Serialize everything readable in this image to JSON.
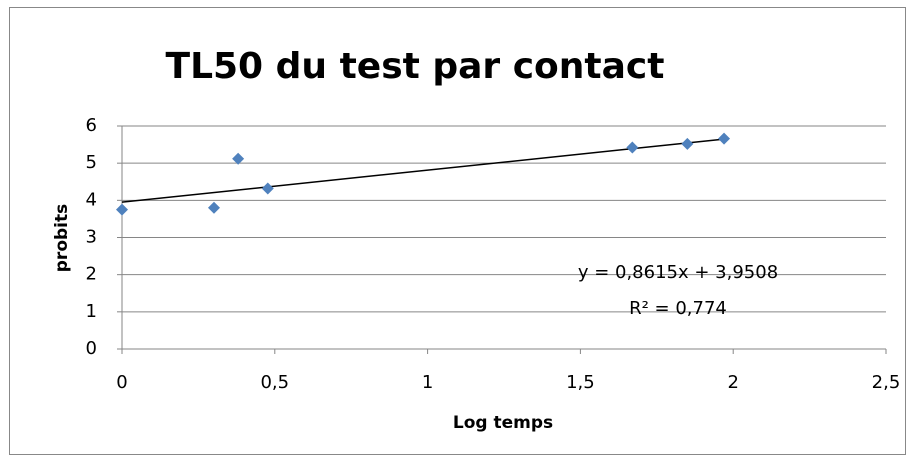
{
  "chart_data": {
    "type": "scatter",
    "title": "TL50 du test par contact",
    "x_label": "Log temps",
    "y_label": "probits",
    "series": [
      {
        "name": "probits",
        "color": "#4f81bd",
        "x": [
          0,
          0.301,
          0.38,
          0.477,
          1.67,
          1.85,
          1.97
        ],
        "values": [
          3.75,
          3.8,
          5.12,
          4.32,
          5.42,
          5.52,
          5.66
        ]
      }
    ],
    "trendline": {
      "slope": 0.8615,
      "intercept": 3.9508,
      "color": "#000000",
      "equation": "y = 0,8615x + 3,9508",
      "r_squared": "R² = 0,774"
    },
    "xlim": [
      0,
      2.5
    ],
    "xticks": [
      0,
      {
        "value": 0.5,
        "label": "0,5"
      },
      1,
      {
        "value": 1.5,
        "label": "1,5"
      },
      2,
      {
        "value": 2.5,
        "label": "2,5"
      }
    ],
    "ylim": [
      0,
      6
    ],
    "yticks": [
      0,
      1,
      2,
      3,
      4,
      5,
      6
    ],
    "grid": true
  }
}
